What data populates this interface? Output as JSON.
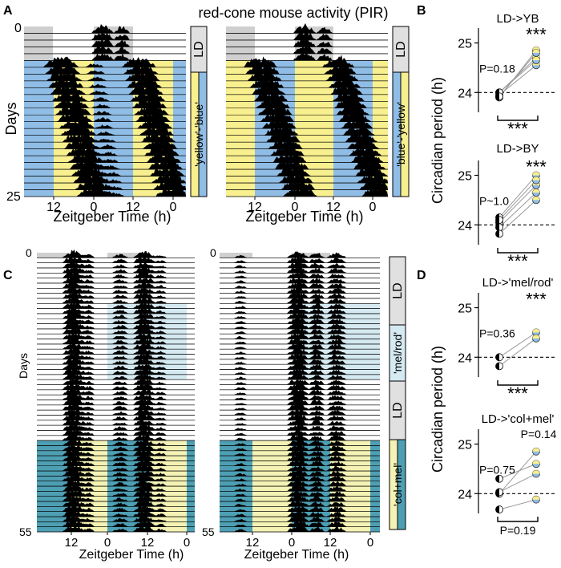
{
  "figure": {
    "title": "red-cone mouse activity (PIR)",
    "panel_labels": [
      "A",
      "B",
      "C",
      "D"
    ]
  },
  "actograms": {
    "days_label": "Days",
    "xlabel": "Zeitgeber Time (h)",
    "x_ticks": [
      "12",
      "0",
      "12",
      "0"
    ],
    "colors": {
      "yellow": "#f8ef8e",
      "blue": "#8fbde6",
      "gray": "#cfcfcf",
      "teal": "#4e9fb3",
      "paleyellow": "#f4f2b4",
      "paleblue": "#d5e9f1"
    },
    "A_left": {
      "y_ticks": [
        "0",
        "25"
      ],
      "side_labels": [
        "LD",
        "'yellow'-'blue'"
      ]
    },
    "A_right": {
      "side_labels": [
        "LD",
        "'blue'-'yellow'"
      ]
    },
    "C_left": {
      "y_ticks": [
        "0",
        "55"
      ],
      "side_labels": [
        "LD",
        "'mel/rod'",
        "LD",
        "'col+mel'"
      ]
    },
    "C_right": {
      "y_ticks": [
        "0",
        "55"
      ]
    }
  },
  "chart_data": [
    {
      "panel": "B",
      "type": "scatter",
      "title": "LD->YB",
      "ylabel": "Circadian period (h)",
      "ylim": [
        23.6,
        25.3
      ],
      "yticks": [
        24,
        25
      ],
      "x": [
        "LD",
        "YB"
      ],
      "pairs": [
        [
          23.9,
          24.85
        ],
        [
          24.0,
          24.7
        ],
        [
          23.95,
          24.55
        ],
        [
          24.0,
          24.65
        ],
        [
          23.92,
          24.8
        ]
      ],
      "annotations": {
        "left": "P=0.18",
        "right": "***",
        "bracket": "***"
      }
    },
    {
      "panel": "B",
      "type": "scatter",
      "title": "LD->BY",
      "ylabel": "Circadian period (h)",
      "ylim": [
        23.6,
        25.3
      ],
      "yticks": [
        24,
        25
      ],
      "x": [
        "LD",
        "BY"
      ],
      "pairs": [
        [
          24.15,
          25.0
        ],
        [
          24.05,
          24.8
        ],
        [
          23.95,
          24.65
        ],
        [
          23.82,
          24.5
        ],
        [
          24.1,
          24.9
        ]
      ],
      "annotations": {
        "left": "P~1.0",
        "right": "***",
        "bracket": "***"
      }
    },
    {
      "panel": "D",
      "type": "scatter",
      "title": "LD->'mel/rod'",
      "ylabel": "Circadian period (h)",
      "ylim": [
        23.6,
        25.3
      ],
      "yticks": [
        24,
        25
      ],
      "x": [
        "LD",
        "mel/rod"
      ],
      "pairs": [
        [
          24.0,
          24.5
        ],
        [
          23.82,
          24.38
        ]
      ],
      "annotations": {
        "left": "P=0.36",
        "right": "***",
        "bracket": "***"
      }
    },
    {
      "panel": "D",
      "type": "scatter",
      "title": "LD->'col+mel'",
      "ylabel": "Circadian period (h)",
      "ylim": [
        23.6,
        25.3
      ],
      "yticks": [
        24,
        25
      ],
      "x": [
        "LD",
        "col+mel"
      ],
      "pairs": [
        [
          24.0,
          24.85
        ],
        [
          24.3,
          24.6
        ],
        [
          24.03,
          24.4
        ],
        [
          23.68,
          23.88
        ]
      ],
      "annotations": {
        "left": "P=0.75",
        "right": "P=0.14",
        "bracket": "P=0.19"
      }
    }
  ]
}
